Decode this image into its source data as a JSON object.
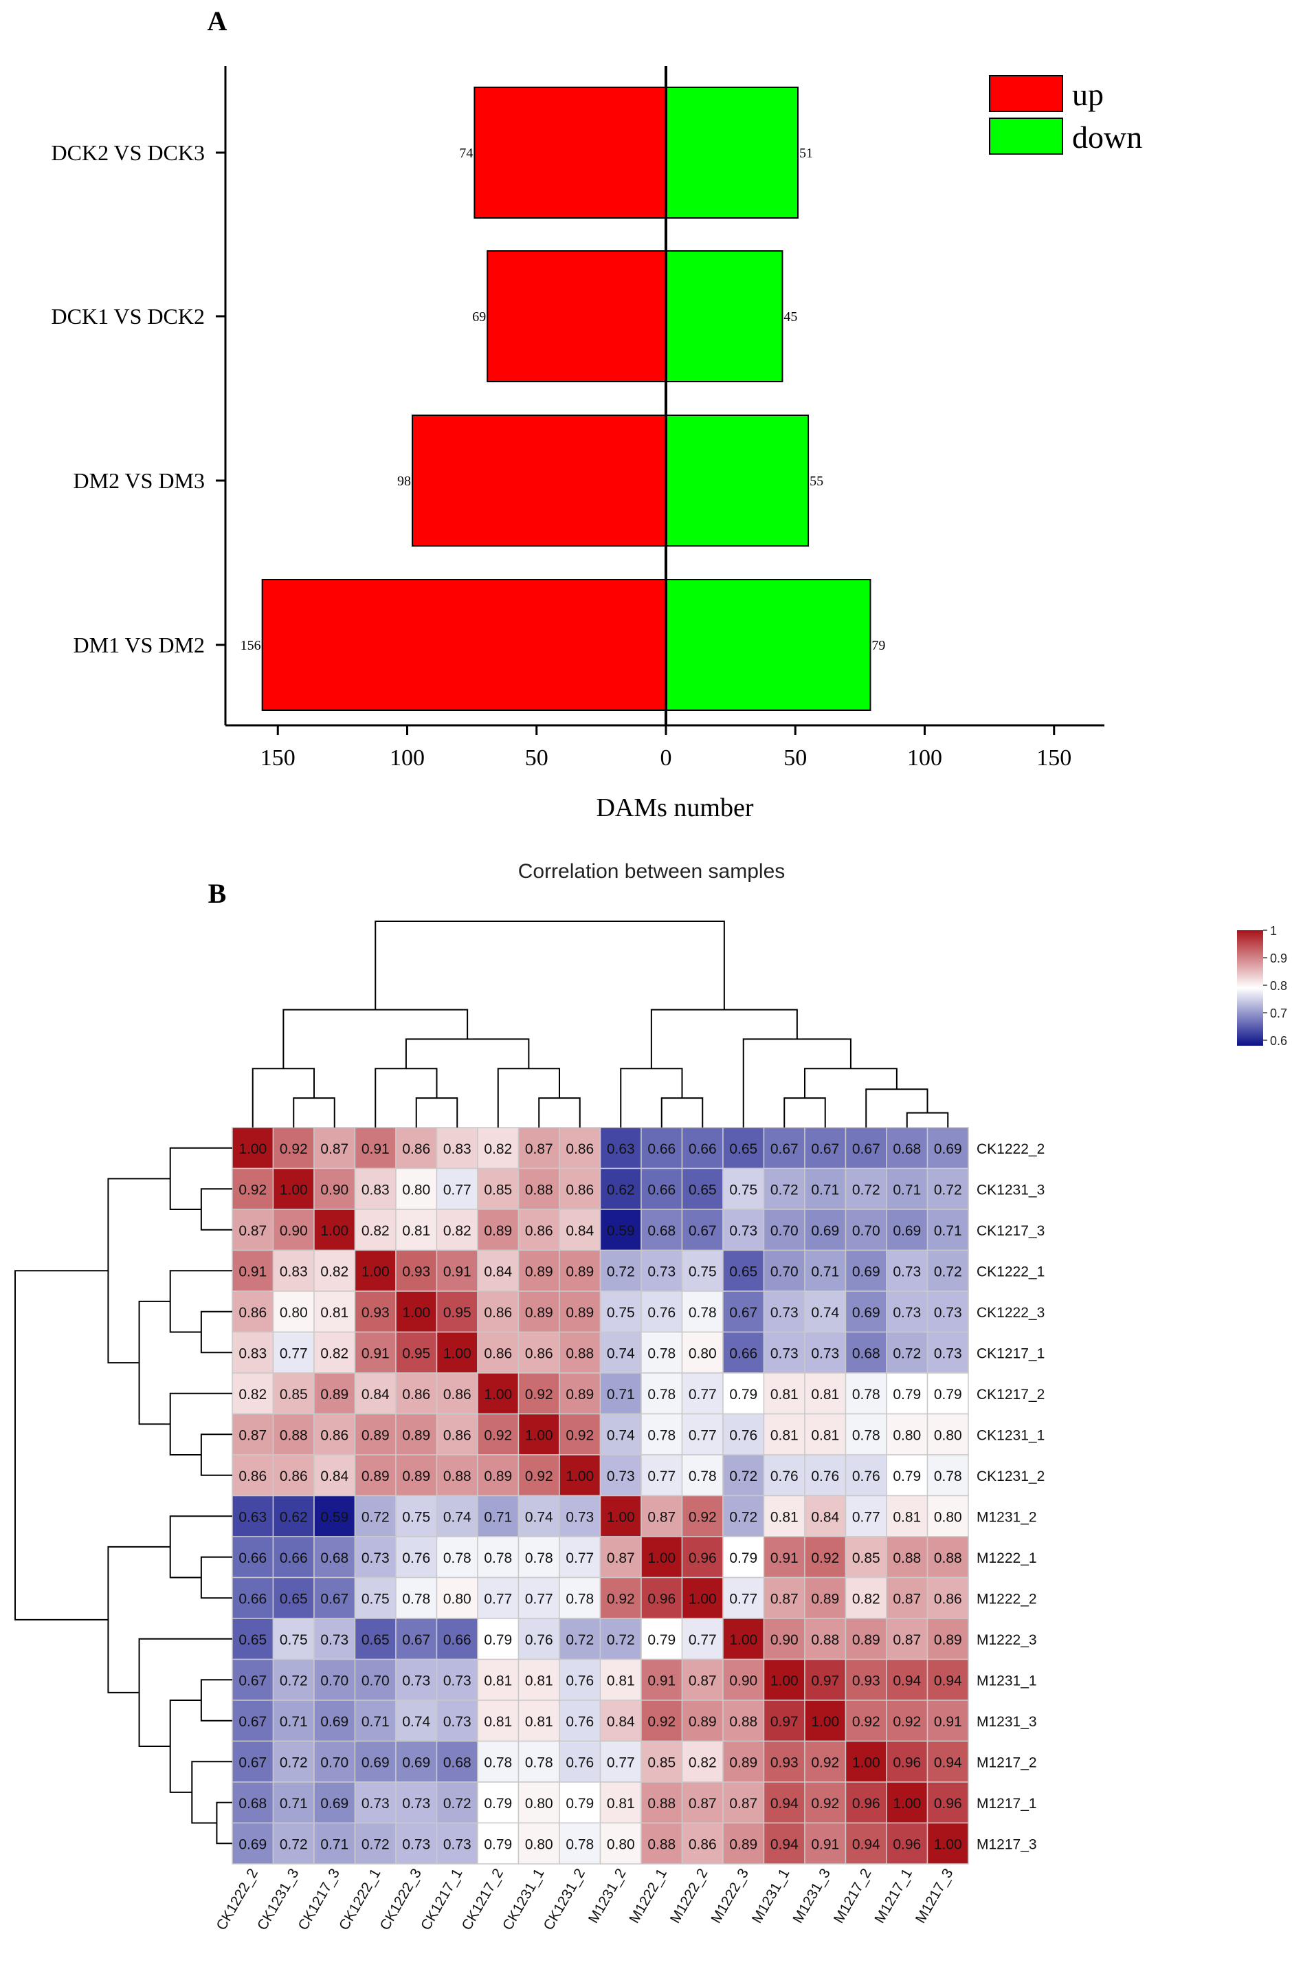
{
  "panel_a_label": "A",
  "panel_b_label": "B",
  "chart_data": [
    {
      "type": "bar",
      "orientation": "horizontal",
      "title": "",
      "categories": [
        "DCK2 VS DCK3",
        "DCK1 VS DCK2",
        "DM2 VS DM3",
        "DM1 VS DM2"
      ],
      "series": [
        {
          "name": "up",
          "color": "#ff0000",
          "values": [
            74,
            69,
            98,
            156
          ]
        },
        {
          "name": "down",
          "color": "#00ff00",
          "values": [
            51,
            45,
            55,
            79
          ]
        }
      ],
      "xlabel": "DAMs number",
      "ylabel": "",
      "xlim": [
        -175,
        170
      ],
      "xticks": [
        -150,
        -100,
        -50,
        0,
        50,
        100,
        150
      ],
      "xtick_labels": [
        "150",
        "100",
        "50",
        "0",
        "50",
        "100",
        "150"
      ],
      "legend": [
        {
          "label": "up",
          "color": "#ff0000"
        },
        {
          "label": "down",
          "color": "#00ff00"
        }
      ],
      "legend_position": "top-right"
    },
    {
      "type": "heatmap",
      "title": "Correlation between samples",
      "labels": [
        "CK1222_2",
        "CK1231_3",
        "CK1217_3",
        "CK1222_1",
        "CK1222_3",
        "CK1217_1",
        "CK1217_2",
        "CK1231_1",
        "CK1231_2",
        "M1231_2",
        "M1222_1",
        "M1222_2",
        "M1222_3",
        "M1231_1",
        "M1231_3",
        "M1217_2",
        "M1217_1",
        "M1217_3"
      ],
      "matrix": [
        [
          1.0,
          0.92,
          0.87,
          0.91,
          0.86,
          0.83,
          0.82,
          0.87,
          0.86,
          0.63,
          0.66,
          0.66,
          0.65,
          0.67,
          0.67,
          0.67,
          0.68,
          0.69
        ],
        [
          0.92,
          1.0,
          0.9,
          0.83,
          0.8,
          0.77,
          0.85,
          0.88,
          0.86,
          0.62,
          0.66,
          0.65,
          0.75,
          0.72,
          0.71,
          0.72,
          0.71,
          0.72
        ],
        [
          0.87,
          0.9,
          1.0,
          0.82,
          0.81,
          0.82,
          0.89,
          0.86,
          0.84,
          0.59,
          0.68,
          0.67,
          0.73,
          0.7,
          0.69,
          0.7,
          0.69,
          0.71
        ],
        [
          0.91,
          0.83,
          0.82,
          1.0,
          0.93,
          0.91,
          0.84,
          0.89,
          0.89,
          0.72,
          0.73,
          0.75,
          0.65,
          0.7,
          0.71,
          0.69,
          0.73,
          0.72
        ],
        [
          0.86,
          0.8,
          0.81,
          0.93,
          1.0,
          0.95,
          0.86,
          0.89,
          0.89,
          0.75,
          0.76,
          0.78,
          0.67,
          0.73,
          0.74,
          0.69,
          0.73,
          0.73
        ],
        [
          0.83,
          0.77,
          0.82,
          0.91,
          0.95,
          1.0,
          0.86,
          0.86,
          0.88,
          0.74,
          0.78,
          0.8,
          0.66,
          0.73,
          0.73,
          0.68,
          0.72,
          0.73
        ],
        [
          0.82,
          0.85,
          0.89,
          0.84,
          0.86,
          0.86,
          1.0,
          0.92,
          0.89,
          0.71,
          0.78,
          0.77,
          0.79,
          0.81,
          0.81,
          0.78,
          0.79,
          0.79
        ],
        [
          0.87,
          0.88,
          0.86,
          0.89,
          0.89,
          0.86,
          0.92,
          1.0,
          0.92,
          0.74,
          0.78,
          0.77,
          0.76,
          0.81,
          0.81,
          0.78,
          0.8,
          0.8
        ],
        [
          0.86,
          0.86,
          0.84,
          0.89,
          0.89,
          0.88,
          0.89,
          0.92,
          1.0,
          0.73,
          0.77,
          0.78,
          0.72,
          0.76,
          0.76,
          0.76,
          0.79,
          0.78
        ],
        [
          0.63,
          0.62,
          0.59,
          0.72,
          0.75,
          0.74,
          0.71,
          0.74,
          0.73,
          1.0,
          0.87,
          0.92,
          0.72,
          0.81,
          0.84,
          0.77,
          0.81,
          0.8
        ],
        [
          0.66,
          0.66,
          0.68,
          0.73,
          0.76,
          0.78,
          0.78,
          0.78,
          0.77,
          0.87,
          1.0,
          0.96,
          0.79,
          0.91,
          0.92,
          0.85,
          0.88,
          0.88
        ],
        [
          0.66,
          0.65,
          0.67,
          0.75,
          0.78,
          0.8,
          0.77,
          0.77,
          0.78,
          0.92,
          0.96,
          1.0,
          0.77,
          0.87,
          0.89,
          0.82,
          0.87,
          0.86
        ],
        [
          0.65,
          0.75,
          0.73,
          0.65,
          0.67,
          0.66,
          0.79,
          0.76,
          0.72,
          0.72,
          0.79,
          0.77,
          1.0,
          0.9,
          0.88,
          0.89,
          0.87,
          0.89
        ],
        [
          0.67,
          0.72,
          0.7,
          0.7,
          0.73,
          0.73,
          0.81,
          0.81,
          0.76,
          0.81,
          0.91,
          0.87,
          0.9,
          1.0,
          0.97,
          0.93,
          0.94,
          0.94
        ],
        [
          0.67,
          0.71,
          0.69,
          0.71,
          0.74,
          0.73,
          0.81,
          0.81,
          0.76,
          0.84,
          0.92,
          0.89,
          0.88,
          0.97,
          1.0,
          0.92,
          0.92,
          0.91
        ],
        [
          0.67,
          0.72,
          0.7,
          0.69,
          0.69,
          0.68,
          0.78,
          0.78,
          0.76,
          0.77,
          0.85,
          0.82,
          0.89,
          0.93,
          0.92,
          1.0,
          0.96,
          0.94
        ],
        [
          0.68,
          0.71,
          0.69,
          0.73,
          0.73,
          0.72,
          0.79,
          0.8,
          0.79,
          0.81,
          0.88,
          0.87,
          0.87,
          0.94,
          0.92,
          0.96,
          1.0,
          0.96
        ],
        [
          0.69,
          0.72,
          0.71,
          0.72,
          0.73,
          0.73,
          0.79,
          0.8,
          0.78,
          0.8,
          0.88,
          0.86,
          0.89,
          0.94,
          0.91,
          0.94,
          0.96,
          1.0
        ]
      ],
      "value_format": "two decimals",
      "color_scale": {
        "min": 0.58,
        "max": 1.0,
        "low": "#0a0f87",
        "mid": "#ffffff",
        "high": "#a8131a"
      },
      "colorbar_ticks": [
        1,
        0.9,
        0.8,
        0.7,
        0.6
      ],
      "colorbar_tick_labels": [
        "1",
        "0.9",
        "0.8",
        "0.7",
        "0.6"
      ],
      "legend_position": "top-right",
      "dendrogram": "hierarchical clustering on rows (left) and columns (top)"
    }
  ]
}
